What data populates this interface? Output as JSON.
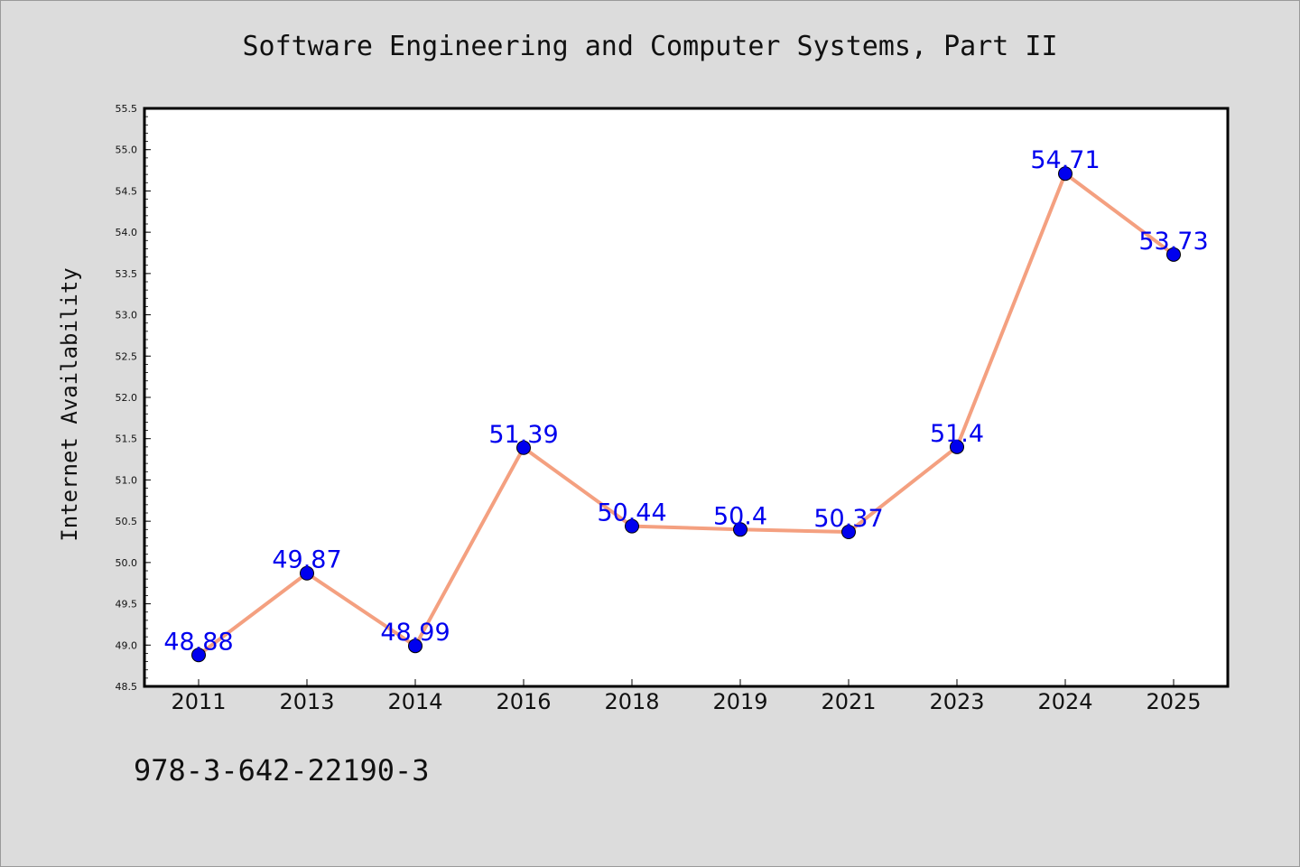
{
  "title": "Software Engineering and Computer Systems, Part II",
  "isbn": "978-3-642-22190-3",
  "colors": {
    "background": "#dcdcdc",
    "plot_background": "#ffffff",
    "line": "#f4a080",
    "marker": "#0000ee",
    "data_label": "#0000ee"
  },
  "chart_data": {
    "type": "line",
    "title": "Software Engineering and Computer Systems, Part II",
    "xlabel": "",
    "ylabel": "Internet Availability",
    "categories": [
      "2011",
      "2013",
      "2014",
      "2016",
      "2018",
      "2019",
      "2021",
      "2023",
      "2024",
      "2025"
    ],
    "series": [
      {
        "values": [
          48.88,
          49.87,
          48.99,
          51.39,
          50.44,
          50.4,
          50.37,
          51.4,
          54.71,
          53.73
        ],
        "labels": [
          "48.88",
          "49.87",
          "48.99",
          "51.39",
          "50.44",
          "50.4",
          "50.37",
          "51.4",
          "54.71",
          "53.73"
        ]
      }
    ],
    "ylim": [
      48.5,
      55.5
    ],
    "yticks": [
      48.5,
      49.0,
      49.5,
      50.0,
      50.5,
      51.0,
      51.5,
      52.0,
      52.5,
      53.0,
      53.5,
      54.0,
      54.5,
      55.0,
      55.5
    ],
    "ytick_labels": [
      "48.5",
      "49.0",
      "49.5",
      "50.0",
      "50.5",
      "51.0",
      "51.5",
      "52.0",
      "52.5",
      "53.0",
      "53.5",
      "54.0",
      "54.5",
      "55.0",
      "55.5"
    ],
    "grid": false,
    "legend": "none"
  }
}
